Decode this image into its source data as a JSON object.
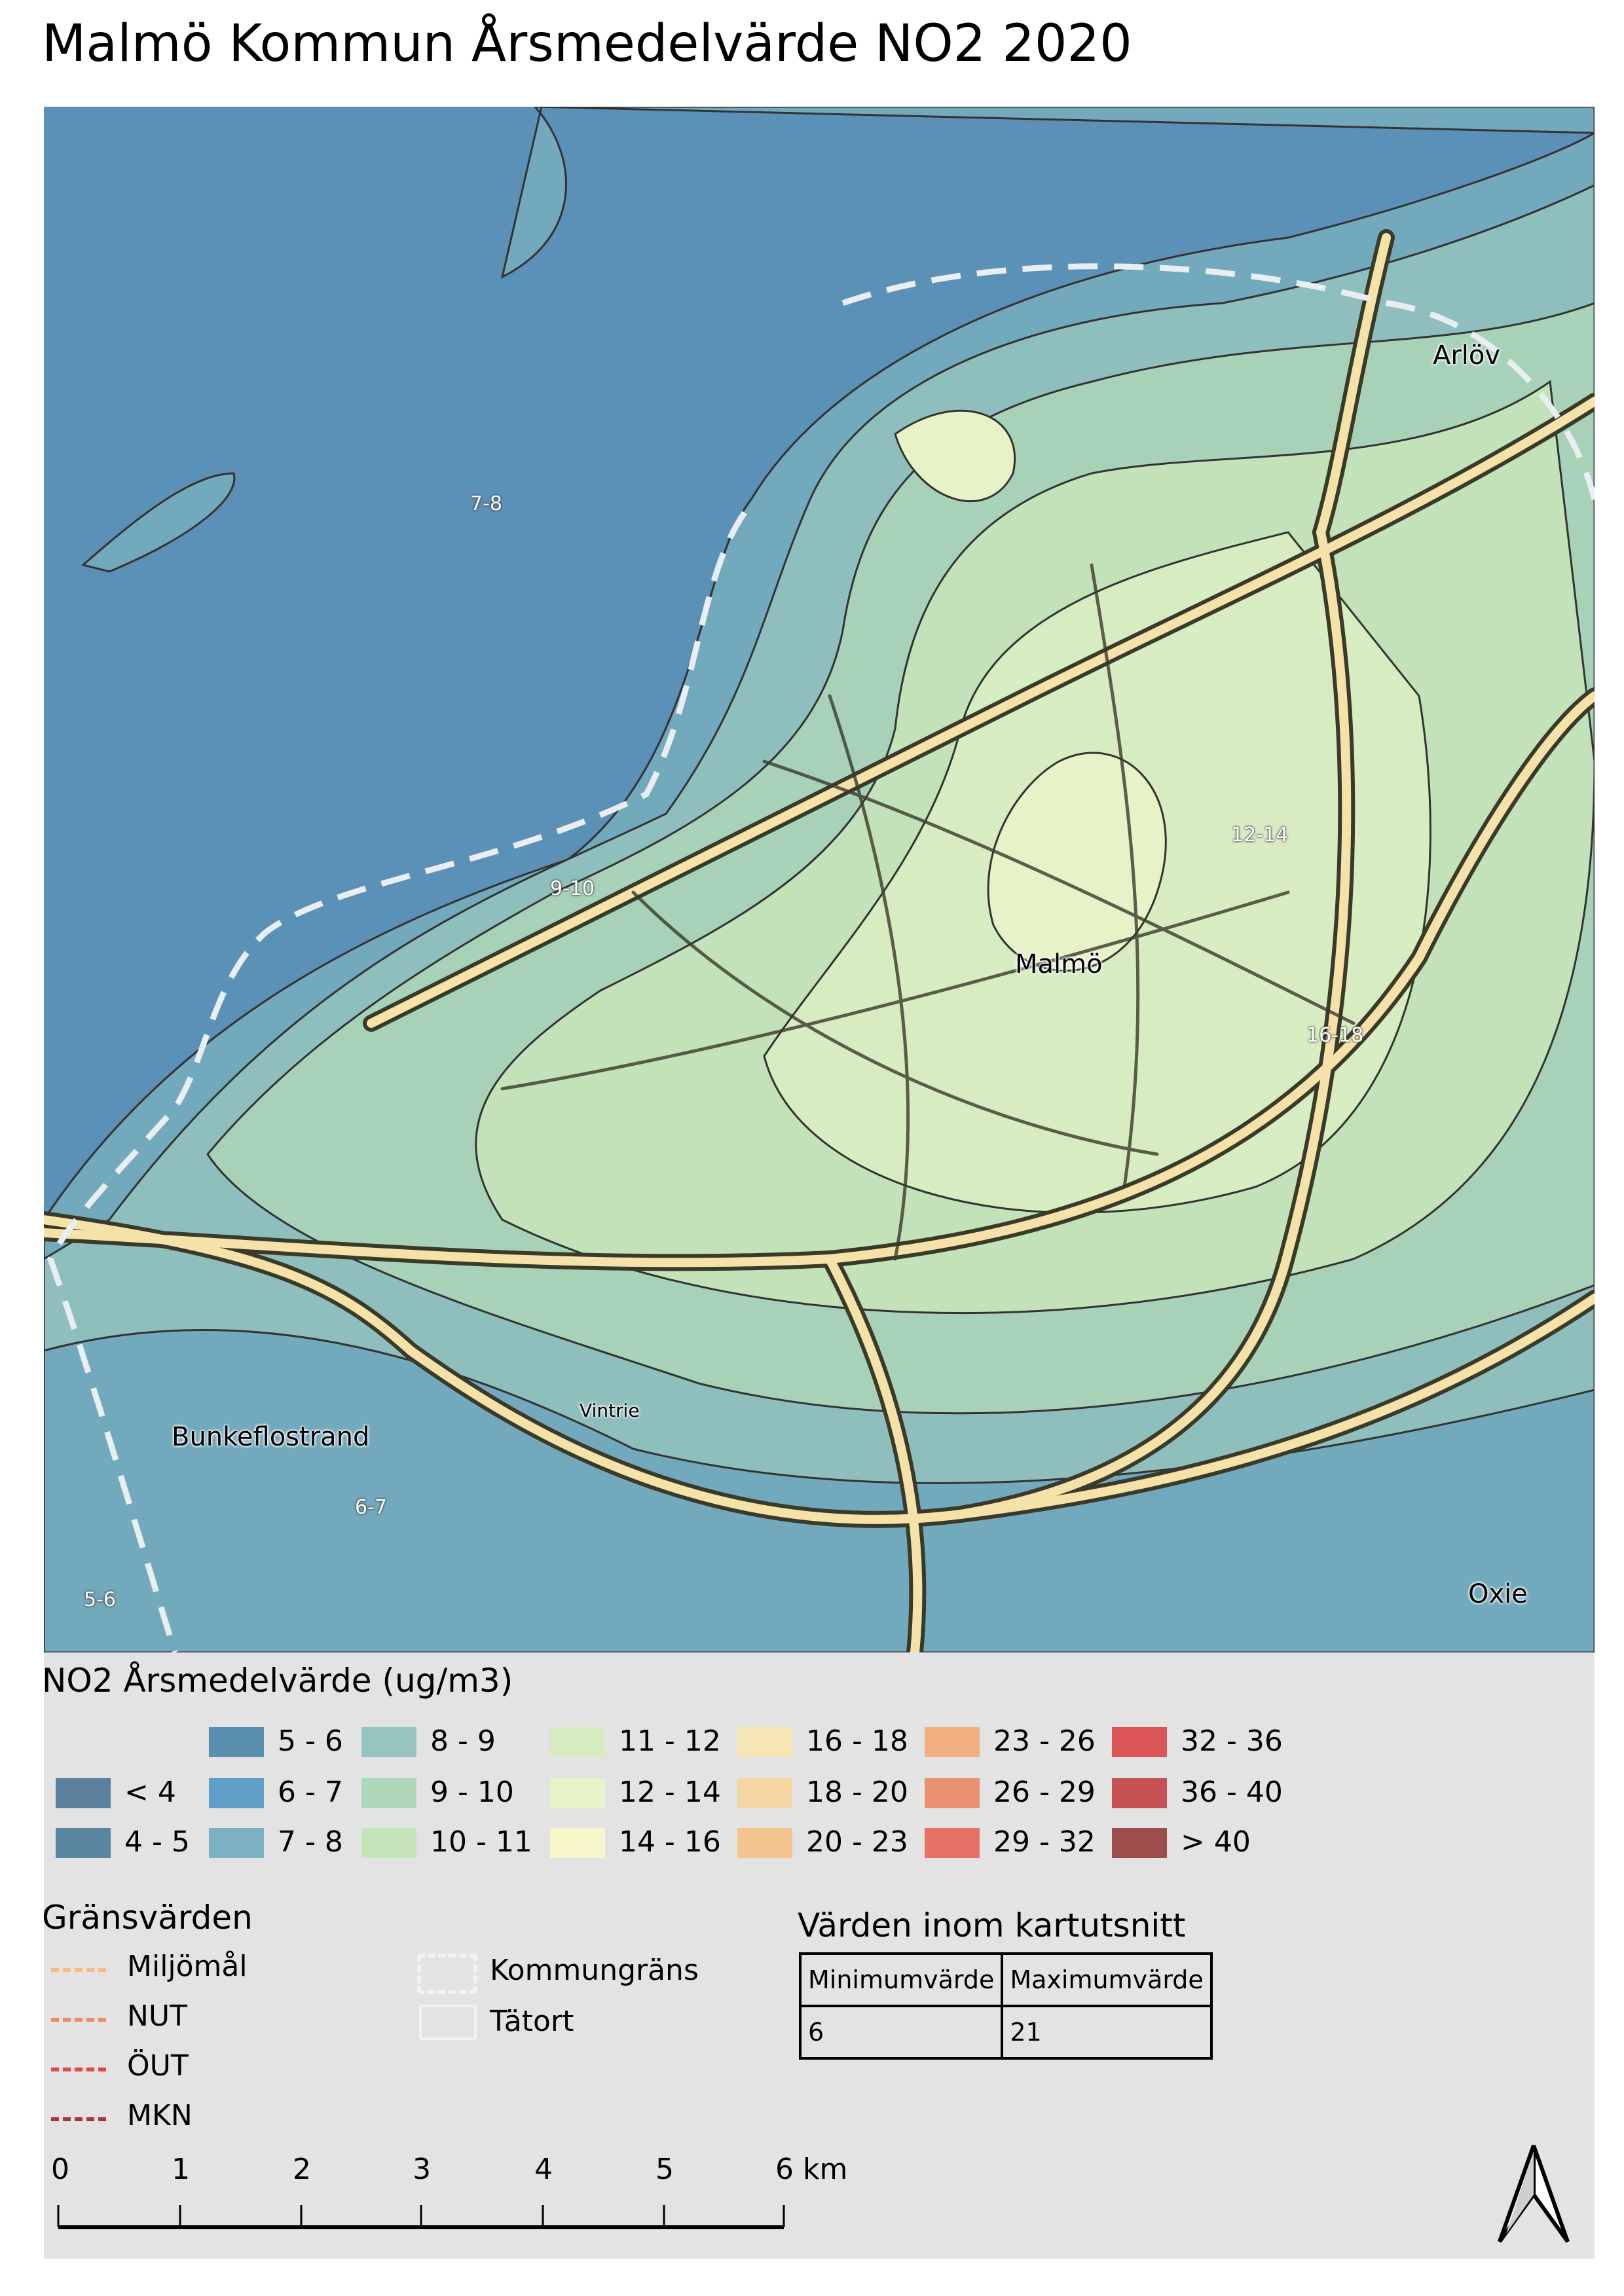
{
  "title": "Malmö Kommun Årsmedelvärde NO2 2020",
  "map": {
    "contour_labels": [
      "7-8",
      "9-10",
      "12-14",
      "16-18",
      "6-7",
      "5-6"
    ],
    "places": [
      "Malmö",
      "Arlöv",
      "Bunkeflostrand",
      "Vintrie",
      "Oxie"
    ],
    "colors": {
      "sea": "#5b90b7",
      "c7_8": "#7ab0bf",
      "c8_9": "#97c3bd",
      "c9_10": "#aed4b8",
      "c10_11": "#c5e3b9",
      "c11_12": "#d6ebc1",
      "c12_14": "#e6f1c6",
      "road": "#f4e6b0",
      "border": "#eaeaea"
    }
  },
  "legend": {
    "title": "NO2 Årsmedelvärde (ug/m3)",
    "classes": [
      {
        "label": "< 4",
        "color": "#5a809e"
      },
      {
        "label": "4 - 5",
        "color": "#5b86a2"
      },
      {
        "label": "5 - 6",
        "color": "#5b8fb2"
      },
      {
        "label": "6 - 7",
        "color": "#5f9ec7"
      },
      {
        "label": "7 - 8",
        "color": "#7cb1c3"
      },
      {
        "label": "8 - 9",
        "color": "#97c4be"
      },
      {
        "label": "9 - 10",
        "color": "#aed6b9"
      },
      {
        "label": "10 - 11",
        "color": "#c5e4ba"
      },
      {
        "label": "11 - 12",
        "color": "#d6ebc2"
      },
      {
        "label": "12 - 14",
        "color": "#e6f2c7"
      },
      {
        "label": "14 - 16",
        "color": "#f7f6ca"
      },
      {
        "label": "16 - 18",
        "color": "#f6e6b6"
      },
      {
        "label": "18 - 20",
        "color": "#f5d6a2"
      },
      {
        "label": "20 - 23",
        "color": "#f4c48e"
      },
      {
        "label": "23 - 26",
        "color": "#f1af7f"
      },
      {
        "label": "26 - 29",
        "color": "#ea9171"
      },
      {
        "label": "29 - 32",
        "color": "#e57265"
      },
      {
        "label": "32 - 36",
        "color": "#db5556"
      },
      {
        "label": "36 - 40",
        "color": "#c65152"
      },
      {
        "label": "> 40",
        "color": "#9c4d4c"
      }
    ]
  },
  "limits": {
    "title": "Gränsvärden",
    "items": [
      {
        "label": "Miljömål",
        "color": "#f8bb84"
      },
      {
        "label": "NUT",
        "color": "#f08a66"
      },
      {
        "label": "ÖUT",
        "color": "#e04848"
      },
      {
        "label": "MKN",
        "color": "#a83838"
      }
    ],
    "kommungrans": "Kommungräns",
    "tatort": "Tätort"
  },
  "values_table": {
    "title": "Värden inom kartutsnitt",
    "headers": [
      "Minimumvärde",
      "Maximumvärde"
    ],
    "row": [
      "6",
      "21"
    ]
  },
  "scalebar": {
    "ticks": [
      "0",
      "1",
      "2",
      "3",
      "4",
      "5",
      "6 km"
    ]
  },
  "north_arrow": "north-arrow-icon"
}
